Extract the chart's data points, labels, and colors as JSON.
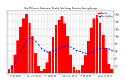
{
  "title": "Solar PV/Inverter Performance  Monthly Solar Energy Production Running Average",
  "months_labels": [
    "J",
    "F",
    "M",
    "A",
    "M",
    "J",
    "J",
    "A",
    "S",
    "O",
    "N",
    "D",
    "J",
    "F",
    "M",
    "A",
    "M",
    "J",
    "J",
    "A",
    "S",
    "O",
    "N",
    "D",
    "J",
    "F",
    "M",
    "A",
    "M",
    "J",
    "J",
    "A",
    "S",
    "O",
    "N",
    "D"
  ],
  "values": [
    10,
    22,
    50,
    90,
    125,
    148,
    160,
    138,
    100,
    55,
    20,
    6,
    13,
    30,
    58,
    98,
    132,
    145,
    155,
    135,
    100,
    50,
    18,
    8,
    8,
    22,
    48,
    88,
    124,
    148,
    158,
    138,
    104,
    68,
    26,
    12
  ],
  "running_avg": [
    10,
    16,
    27,
    43,
    59,
    74,
    88,
    94,
    94,
    88,
    78,
    68,
    63,
    59,
    59,
    61,
    65,
    68,
    72,
    74,
    74,
    72,
    68,
    63,
    60,
    57,
    55,
    55,
    57,
    60,
    64,
    67,
    68,
    68,
    66,
    62
  ],
  "bar_color": "#ff0000",
  "line_color": "#0000ff",
  "bg_color": "#ffffff",
  "grid_color": "#aaaaaa",
  "ylim": [
    0,
    170
  ],
  "ytick_values": [
    20,
    40,
    60,
    80,
    100,
    120,
    140,
    160
  ],
  "legend_labels": [
    "Monthly",
    "Running Avg"
  ],
  "legend_colors": [
    "#ff0000",
    "#0000ff"
  ]
}
